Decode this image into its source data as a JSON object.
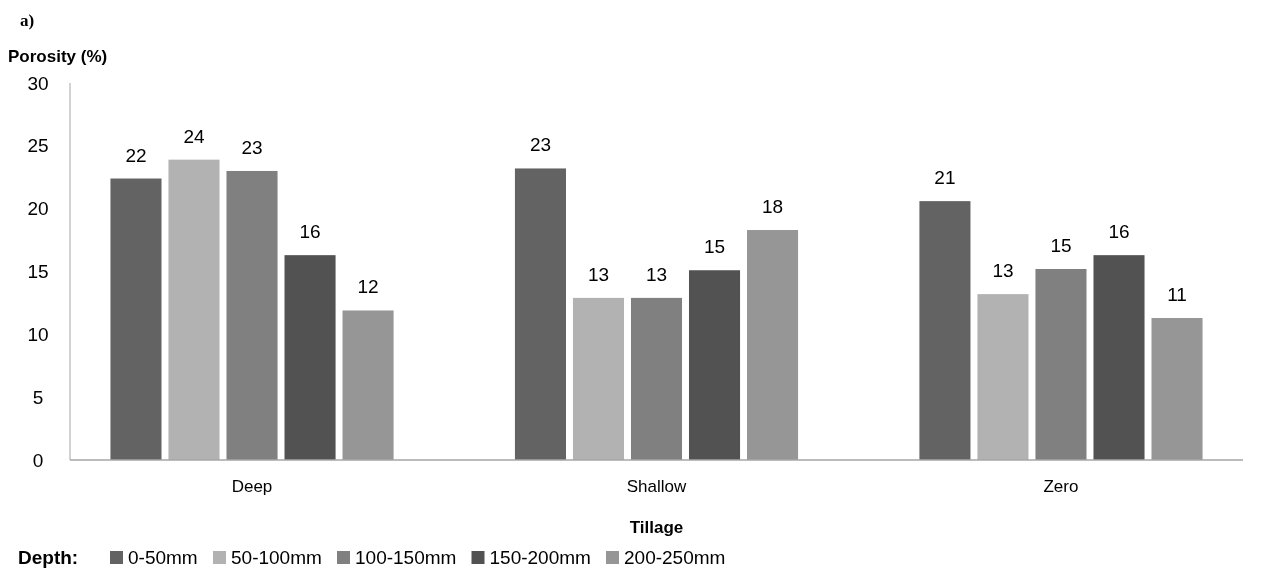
{
  "chart_data": {
    "type": "bar",
    "title": "a)",
    "ylabel": "Porosity (%)",
    "xlabel": "Tillage",
    "legend_title": "Depth:",
    "categories": [
      "Deep",
      "Shallow",
      "Zero"
    ],
    "series": [
      {
        "name": "0-50mm",
        "color": "#636363",
        "values": [
          22.4,
          23.2,
          20.6
        ],
        "value_labels": [
          "22",
          "23",
          "21"
        ]
      },
      {
        "name": "50-100mm",
        "color": "#b2b2b2",
        "values": [
          23.9,
          12.9,
          13.2
        ],
        "value_labels": [
          "24",
          "13",
          "13"
        ]
      },
      {
        "name": "100-150mm",
        "color": "#808080",
        "values": [
          23.0,
          12.9,
          15.2
        ],
        "value_labels": [
          "23",
          "13",
          "15"
        ]
      },
      {
        "name": "150-200mm",
        "color": "#525252",
        "values": [
          16.3,
          15.1,
          16.3
        ],
        "value_labels": [
          "16",
          "15",
          "16"
        ]
      },
      {
        "name": "200-250mm",
        "color": "#969696",
        "values": [
          11.9,
          18.3,
          11.3
        ],
        "value_labels": [
          "12",
          "18",
          "11"
        ]
      }
    ],
    "ylim": [
      0,
      30
    ],
    "yticks": [
      0,
      5,
      10,
      15,
      20,
      25,
      30
    ],
    "grid": false,
    "legend": "bottom"
  }
}
